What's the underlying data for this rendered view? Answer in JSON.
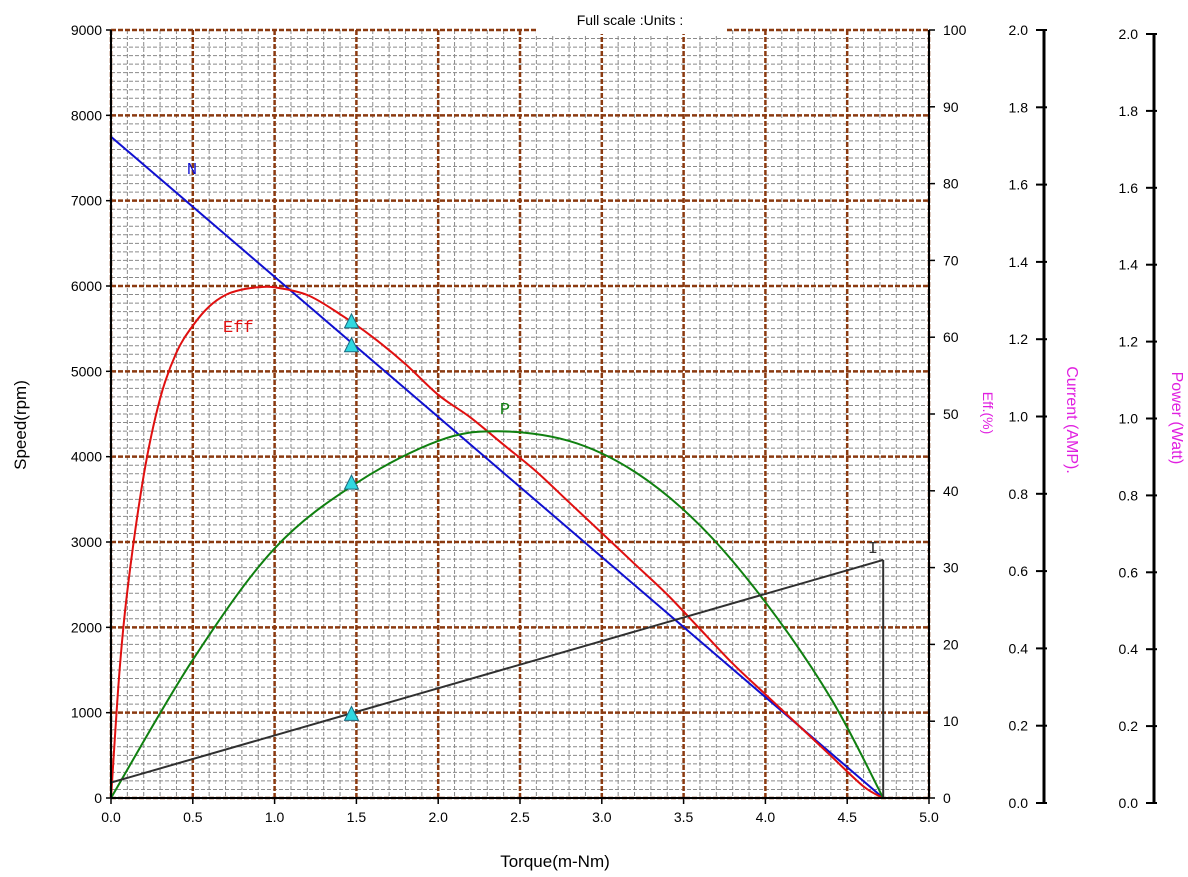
{
  "header": {
    "full_scale_label": "Full scale :Units :"
  },
  "chart_data": {
    "type": "line",
    "title": "",
    "xlabel": "Torque(m-Nm)",
    "xlim": [
      0,
      5
    ],
    "x_ticks": [
      "0.0",
      "0.5",
      "1.0",
      "1.5",
      "2.0",
      "2.5",
      "3.0",
      "3.5",
      "4.0",
      "4.5",
      "5.0"
    ],
    "axes": {
      "speed": {
        "label": "Speed(rpm)",
        "range": [
          0,
          9000
        ],
        "ticks": [
          "0",
          "1000",
          "2000",
          "3000",
          "4000",
          "5000",
          "6000",
          "7000",
          "8000",
          "9000"
        ]
      },
      "efficiency": {
        "label": "Eff.(%)",
        "range": [
          0,
          100
        ],
        "ticks": [
          "0",
          "10",
          "20",
          "30",
          "40",
          "50",
          "60",
          "70",
          "80",
          "90",
          "100"
        ]
      },
      "current": {
        "label": "Current (AMP).",
        "range": [
          0,
          2
        ],
        "ticks": [
          "0.0",
          "0.2",
          "0.4",
          "0.6",
          "0.8",
          "1.0",
          "1.2",
          "1.4",
          "1.6",
          "1.8",
          "2.0"
        ]
      },
      "power": {
        "label": "Power (Watt)",
        "range": [
          0,
          2
        ],
        "ticks": [
          "0.0",
          "0.2",
          "0.4",
          "0.6",
          "0.8",
          "1.0",
          "1.2",
          "1.4",
          "1.6",
          "1.8",
          "2.0"
        ]
      }
    },
    "grid": true,
    "series": [
      {
        "name": "N",
        "axis": "speed",
        "color": "#1010d0",
        "x": [
          0,
          4.72
        ],
        "y": [
          7750,
          0
        ]
      },
      {
        "name": "Eff",
        "axis": "efficiency",
        "color": "#e01010",
        "x": [
          0,
          0.05,
          0.1,
          0.2,
          0.3,
          0.4,
          0.5,
          0.6,
          0.7,
          0.8,
          0.9,
          1.0,
          1.2,
          1.4,
          1.6,
          1.8,
          2.0,
          2.2,
          2.4,
          2.6,
          2.8,
          3.0,
          3.2,
          3.4,
          3.6,
          3.8,
          4.0,
          4.2,
          4.4,
          4.6,
          4.72
        ],
        "y": [
          0,
          16,
          27,
          42,
          52,
          58,
          61.5,
          64,
          65.5,
          66.2,
          66.5,
          66.5,
          65.5,
          63,
          60,
          56.5,
          52.5,
          49.5,
          46,
          42.5,
          38.5,
          34.5,
          30.5,
          26.5,
          22,
          17.5,
          13.5,
          9.5,
          5.5,
          1.5,
          0
        ]
      },
      {
        "name": "P",
        "axis": "power",
        "color": "#108010",
        "x": [
          0,
          0.5,
          1.0,
          1.5,
          2.0,
          2.36,
          2.8,
          3.2,
          3.6,
          4.0,
          4.4,
          4.72
        ],
        "y": [
          0,
          0.36,
          0.65,
          0.82,
          0.93,
          0.955,
          0.93,
          0.85,
          0.71,
          0.51,
          0.26,
          0
        ]
      },
      {
        "name": "I",
        "axis": "current",
        "color": "#303030",
        "x": [
          0,
          4.72
        ],
        "y": [
          0.04,
          0.62
        ]
      }
    ],
    "markers": [
      {
        "x": 1.47,
        "axis": "efficiency",
        "y": 62
      },
      {
        "x": 1.47,
        "axis": "speed",
        "y": 5300
      },
      {
        "x": 1.47,
        "axis": "power",
        "y": 0.82
      },
      {
        "x": 1.47,
        "axis": "speed",
        "y": 980
      }
    ]
  }
}
